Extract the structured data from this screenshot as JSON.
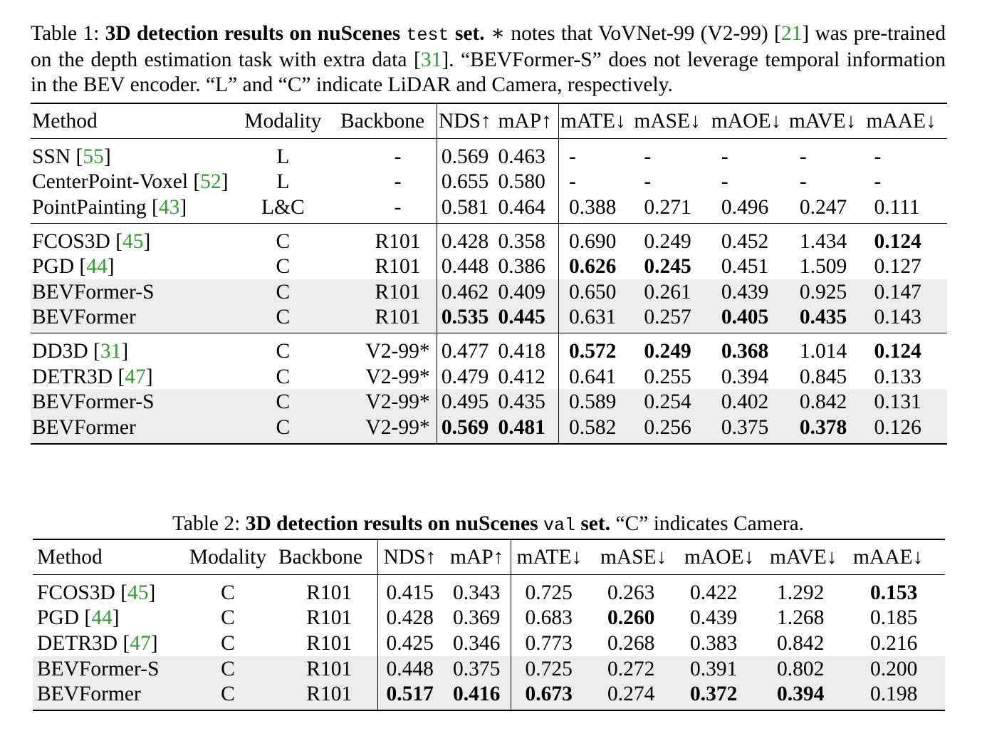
{
  "table1": {
    "caption": {
      "label": "Table 1:",
      "bold": "3D detection results on nuScenes",
      "mono": "test",
      "bold2": "set.",
      "star": "∗",
      "text1": "notes that VoVNet-99 (V2-99) [",
      "cite1": "21",
      "text2": "] was pre-trained on the depth estimation task with extra data [",
      "cite2": "31",
      "text3": "]. “BEVFormer-S” does not leverage temporal information in the BEV encoder. “L” and “C” indicate LiDAR and Camera, respectively."
    },
    "headers": [
      "Method",
      "Modality",
      "Backbone",
      "NDS↑",
      "mAP↑",
      "mATE↓",
      "mASE↓",
      "mAOE↓",
      "mAVE↓",
      "mAAE↓"
    ],
    "groups": [
      {
        "rows": [
          {
            "method": "SSN [",
            "cite": "55",
            "close": "]",
            "modality": "L",
            "backbone": "-",
            "nds": "0.569",
            "map": "0.463",
            "mate": "-",
            "mase": "-",
            "maoe": "-",
            "mave": "-",
            "maae": "-",
            "bold": [],
            "shade": false
          },
          {
            "method": "CenterPoint-Voxel [",
            "cite": "52",
            "close": "]",
            "modality": "L",
            "backbone": "-",
            "nds": "0.655",
            "map": "0.580",
            "mate": "-",
            "mase": "-",
            "maoe": "-",
            "mave": "-",
            "maae": "-",
            "bold": [],
            "shade": false
          },
          {
            "method": "PointPainting [",
            "cite": "43",
            "close": "]",
            "modality": "L&C",
            "backbone": "-",
            "nds": "0.581",
            "map": "0.464",
            "mate": "0.388",
            "mase": "0.271",
            "maoe": "0.496",
            "mave": "0.247",
            "maae": "0.111",
            "bold": [],
            "shade": false
          }
        ]
      },
      {
        "rows": [
          {
            "method": "FCOS3D [",
            "cite": "45",
            "close": "]",
            "modality": "C",
            "backbone": "R101",
            "nds": "0.428",
            "map": "0.358",
            "mate": "0.690",
            "mase": "0.249",
            "maoe": "0.452",
            "mave": "1.434",
            "maae": "0.124",
            "bold": [
              "maae"
            ],
            "shade": false
          },
          {
            "method": "PGD [",
            "cite": "44",
            "close": "]",
            "modality": "C",
            "backbone": "R101",
            "nds": "0.448",
            "map": "0.386",
            "mate": "0.626",
            "mase": "0.245",
            "maoe": "0.451",
            "mave": "1.509",
            "maae": "0.127",
            "bold": [
              "mate",
              "mase"
            ],
            "shade": false
          },
          {
            "method": "BEVFormer-S",
            "cite": "",
            "close": "",
            "modality": "C",
            "backbone": "R101",
            "nds": "0.462",
            "map": "0.409",
            "mate": "0.650",
            "mase": "0.261",
            "maoe": "0.439",
            "mave": "0.925",
            "maae": "0.147",
            "bold": [],
            "shade": true
          },
          {
            "method": "BEVFormer",
            "cite": "",
            "close": "",
            "modality": "C",
            "backbone": "R101",
            "nds": "0.535",
            "map": "0.445",
            "mate": "0.631",
            "mase": "0.257",
            "maoe": "0.405",
            "mave": "0.435",
            "maae": "0.143",
            "bold": [
              "nds",
              "map",
              "maoe",
              "mave"
            ],
            "shade": true
          }
        ]
      },
      {
        "rows": [
          {
            "method": "DD3D [",
            "cite": "31",
            "close": "]",
            "modality": "C",
            "backbone": "V2-99*",
            "nds": "0.477",
            "map": "0.418",
            "mate": "0.572",
            "mase": "0.249",
            "maoe": "0.368",
            "mave": "1.014",
            "maae": "0.124",
            "bold": [
              "mate",
              "mase",
              "maoe",
              "maae"
            ],
            "shade": false
          },
          {
            "method": "DETR3D [",
            "cite": "47",
            "close": "]",
            "modality": "C",
            "backbone": "V2-99*",
            "nds": "0.479",
            "map": "0.412",
            "mate": "0.641",
            "mase": "0.255",
            "maoe": "0.394",
            "mave": "0.845",
            "maae": "0.133",
            "bold": [],
            "shade": false
          },
          {
            "method": "BEVFormer-S",
            "cite": "",
            "close": "",
            "modality": "C",
            "backbone": "V2-99*",
            "nds": "0.495",
            "map": "0.435",
            "mate": "0.589",
            "mase": "0.254",
            "maoe": "0.402",
            "mave": "0.842",
            "maae": "0.131",
            "bold": [],
            "shade": true
          },
          {
            "method": "BEVFormer",
            "cite": "",
            "close": "",
            "modality": "C",
            "backbone": "V2-99*",
            "nds": "0.569",
            "map": "0.481",
            "mate": "0.582",
            "mase": "0.256",
            "maoe": "0.375",
            "mave": "0.378",
            "maae": "0.126",
            "bold": [
              "nds",
              "map",
              "mave"
            ],
            "shade": true
          }
        ]
      }
    ]
  },
  "table2": {
    "caption": {
      "label": "Table 2:",
      "bold": "3D detection results on nuScenes",
      "mono": "val",
      "bold2": "set.",
      "text": "“C” indicates Camera."
    },
    "headers": [
      "Method",
      "Modality",
      "Backbone",
      "NDS↑",
      "mAP↑",
      "mATE↓",
      "mASE↓",
      "mAOE↓",
      "mAVE↓",
      "mAAE↓"
    ],
    "rows": [
      {
        "method": "FCOS3D [",
        "cite": "45",
        "close": "]",
        "modality": "C",
        "backbone": "R101",
        "nds": "0.415",
        "map": "0.343",
        "mate": "0.725",
        "mase": "0.263",
        "maoe": "0.422",
        "mave": "1.292",
        "maae": "0.153",
        "bold": [
          "maae"
        ],
        "shade": false
      },
      {
        "method": "PGD [",
        "cite": "44",
        "close": "]",
        "modality": "C",
        "backbone": "R101",
        "nds": "0.428",
        "map": "0.369",
        "mate": "0.683",
        "mase": "0.260",
        "maoe": "0.439",
        "mave": "1.268",
        "maae": "0.185",
        "bold": [
          "mase"
        ],
        "shade": false
      },
      {
        "method": "DETR3D [",
        "cite": "47",
        "close": "]",
        "modality": "C",
        "backbone": "R101",
        "nds": "0.425",
        "map": "0.346",
        "mate": "0.773",
        "mase": "0.268",
        "maoe": "0.383",
        "mave": "0.842",
        "maae": "0.216",
        "bold": [],
        "shade": false
      },
      {
        "method": "BEVFormer-S",
        "cite": "",
        "close": "",
        "modality": "C",
        "backbone": "R101",
        "nds": "0.448",
        "map": "0.375",
        "mate": "0.725",
        "mase": "0.272",
        "maoe": "0.391",
        "mave": "0.802",
        "maae": "0.200",
        "bold": [],
        "shade": true
      },
      {
        "method": "BEVFormer",
        "cite": "",
        "close": "",
        "modality": "C",
        "backbone": "R101",
        "nds": "0.517",
        "map": "0.416",
        "mate": "0.673",
        "mase": "0.274",
        "maoe": "0.372",
        "mave": "0.394",
        "maae": "0.198",
        "bold": [
          "nds",
          "map",
          "mate",
          "maoe",
          "mave"
        ],
        "shade": true
      }
    ]
  }
}
